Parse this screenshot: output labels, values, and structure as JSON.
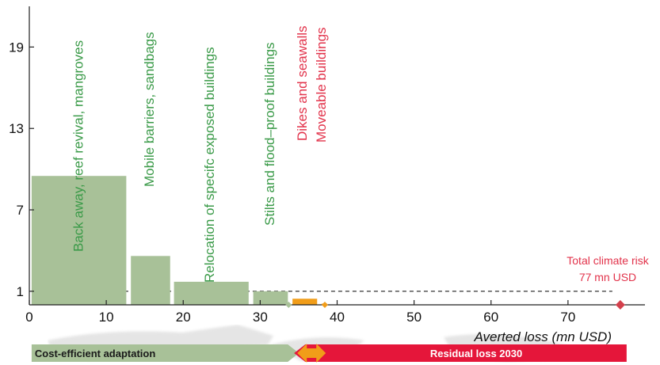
{
  "chart_data": {
    "type": "bar",
    "xlabel": "Averted loss (mn USD)",
    "ylabel": "",
    "xlim": [
      0,
      80
    ],
    "ylim": [
      0,
      22
    ],
    "x_ticks": [
      0,
      10,
      20,
      30,
      40,
      50,
      60,
      70
    ],
    "y_ticks": [
      1,
      7,
      13,
      19
    ],
    "bars": [
      {
        "label": "Back away, reef revival, mangroves",
        "x_start": 0.3,
        "x_end": 12.6,
        "value": 9.5,
        "color": "#a8c198",
        "label_color": "#3a9a48"
      },
      {
        "label": "Mobile barriers, sandbags",
        "x_start": 13.2,
        "x_end": 18.3,
        "value": 3.6,
        "color": "#a8c198",
        "label_color": "#3a9a48"
      },
      {
        "label": "Relocation of specifc exposed buildings",
        "x_start": 18.8,
        "x_end": 28.5,
        "value": 1.7,
        "color": "#a8c198",
        "label_color": "#3a9a48"
      },
      {
        "label": "Stilts and flood–proof buildings",
        "x_start": 29.1,
        "x_end": 33.6,
        "value": 1.0,
        "color": "#a8c198",
        "label_color": "#3a9a48"
      },
      {
        "label": "Dikes and seawalls",
        "x_start": 34.2,
        "x_end": 37.4,
        "value": 0.45,
        "color": "#f19d19",
        "label_color": "#e2334b"
      },
      {
        "label": "Moveable buildings",
        "x_start": 38.0,
        "x_end": 38.7,
        "value": 0.02,
        "color": "#f19d19",
        "label_color": "#e2334b"
      }
    ],
    "reference_line": {
      "value": 1,
      "style": "dashed",
      "color": "#333333"
    },
    "markers": [
      {
        "x": 33.7,
        "color": "#a8c198"
      },
      {
        "x": 38.4,
        "color": "#f19d19"
      },
      {
        "x": 76.8,
        "color": "#d3404c"
      }
    ],
    "total_risk": {
      "line1": "Total climate risk",
      "line2": "77 mn USD",
      "value": 77,
      "color": "#e2334b"
    },
    "banner": {
      "left_label": "Cost-efficient adaptation",
      "right_label": "Residual loss 2030",
      "split_value": 34,
      "end_value": 77,
      "left_color": "#a8c198",
      "right_color": "#e5163a",
      "arrow_color": "#f19d19"
    }
  }
}
